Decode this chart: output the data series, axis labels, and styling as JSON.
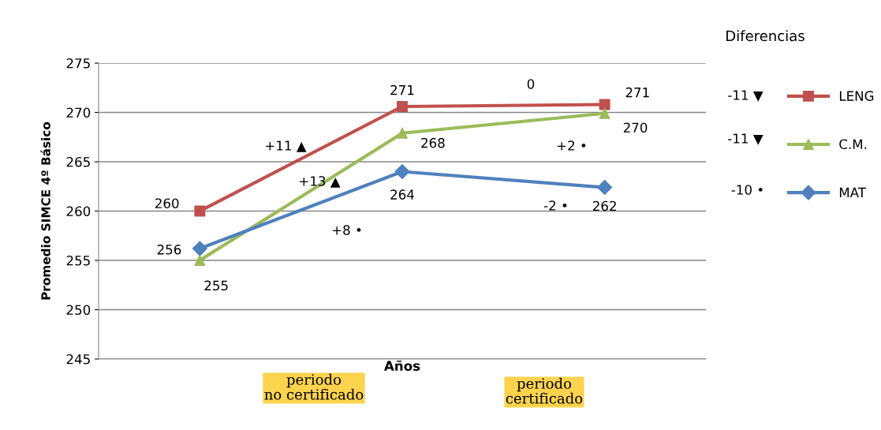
{
  "chart_data": {
    "type": "line",
    "ylabel": "Promedio SIMCE 4º Básico",
    "xlabel": "Años",
    "categories": [
      null,
      null,
      null
    ],
    "ylim": [
      245,
      275
    ],
    "yticks": [
      245,
      250,
      255,
      260,
      265,
      270,
      275
    ],
    "grid": "y",
    "legend": "right",
    "line_style": "solid",
    "series": [
      {
        "name": "LENG",
        "color": "#c0504d",
        "marker": "square",
        "values": [
          260,
          270.6,
          270.8
        ],
        "value_labels": [
          "260",
          "271",
          "271"
        ]
      },
      {
        "name": "C.M.",
        "color": "#9bbb59",
        "marker": "triangle",
        "values": [
          255,
          267.9,
          269.9
        ],
        "value_labels": [
          "255",
          "268",
          "270"
        ]
      },
      {
        "name": "MAT",
        "color": "#4f81bd",
        "marker": "diamond",
        "values": [
          256.2,
          264,
          262.4
        ],
        "value_labels": [
          "256",
          "264",
          "262"
        ]
      }
    ],
    "annotations": [
      "Diferencias",
      "-11 ▼",
      "-11 ▼",
      "-10 •",
      "+11 ▲",
      "+13 ▲",
      "+8 •",
      "0",
      "+2 •",
      "-2 •",
      "periodo\nno certificado",
      "periodo\ncertificado"
    ]
  }
}
